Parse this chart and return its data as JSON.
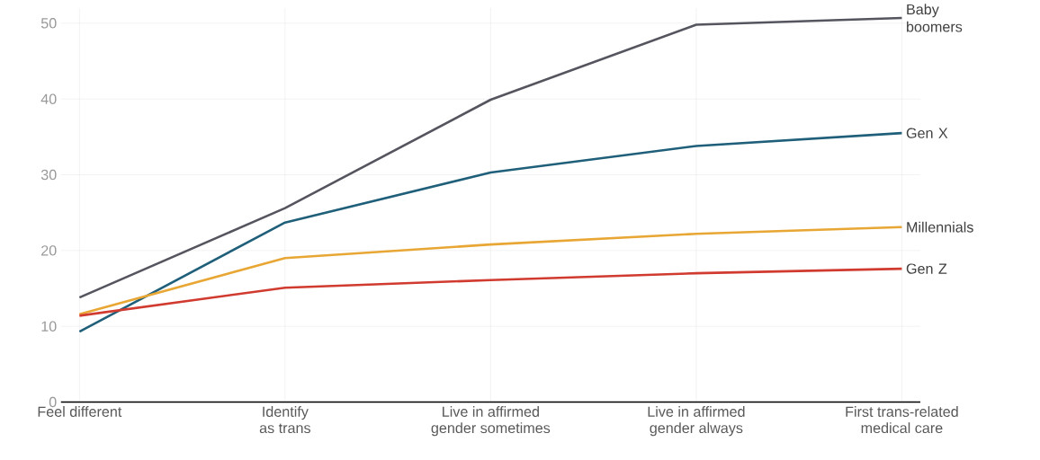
{
  "chart_data": {
    "type": "line",
    "categories": [
      "Feel different",
      "Identify as trans",
      "Live in affirmed gender sometimes",
      "Live in affirmed gender always",
      "First trans-related medical care"
    ],
    "series": [
      {
        "name": "Baby boomers",
        "color": "#55555f",
        "values": [
          13.8,
          25.6,
          39.9,
          49.8,
          50.7
        ]
      },
      {
        "name": "Gen X",
        "color": "#1f5f7a",
        "values": [
          9.3,
          23.7,
          30.3,
          33.8,
          35.5
        ]
      },
      {
        "name": "Millennials",
        "color": "#e8a735",
        "values": [
          11.6,
          19.0,
          20.8,
          22.2,
          23.1
        ]
      },
      {
        "name": "Gen Z",
        "color": "#d03a2f",
        "values": [
          11.4,
          15.1,
          16.1,
          17.0,
          17.6
        ]
      }
    ],
    "ylim": [
      0,
      52
    ],
    "yticks": [
      0,
      10,
      20,
      30,
      40,
      50
    ],
    "grid": true,
    "marker": "none",
    "line_style": "solid"
  }
}
